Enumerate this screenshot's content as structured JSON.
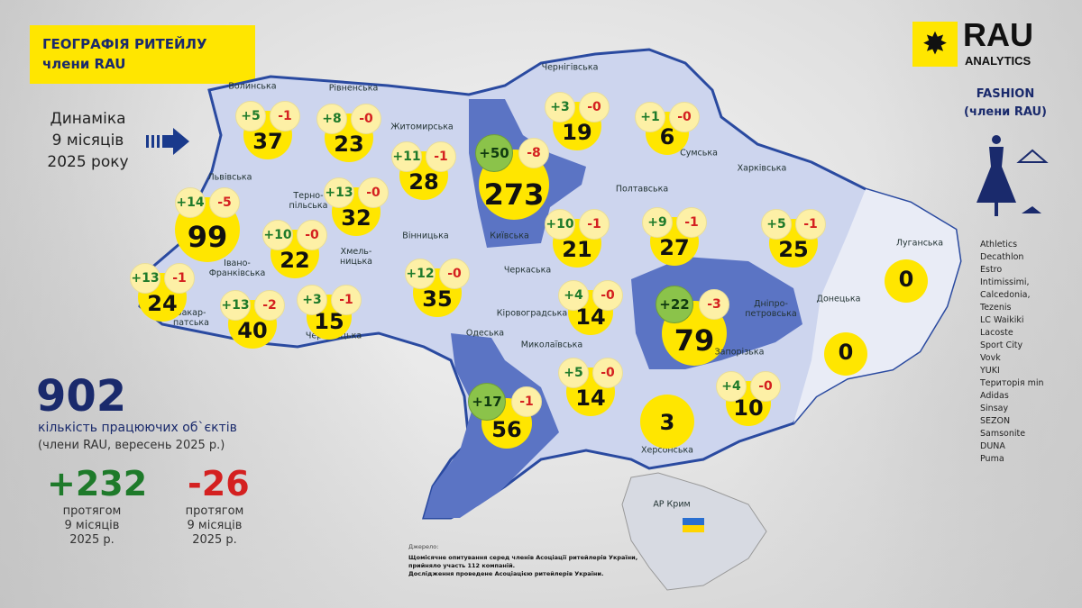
{
  "header": {
    "title_line1": "ГЕОГРАФІЯ РИТЕЙЛУ",
    "title_line2": "члени RAU"
  },
  "dynamics": {
    "line1": "Динаміка",
    "line2": "9 місяців",
    "line3": "2025 року"
  },
  "summary": {
    "total": "902",
    "total_label1": "кількість працюючих об`єктів",
    "total_label2": "(члени RAU, вересень 2025 р.)",
    "opened": "+232",
    "closed": "-26",
    "period_label1": "протягом",
    "period_label2": "9 місяців",
    "period_label3": "2025 р.",
    "opened_color": "#1e7a2a",
    "closed_color": "#d42020"
  },
  "logo": {
    "name": "RAU",
    "sub": "ANALYTICS"
  },
  "segment": {
    "line1": "FASHION",
    "line2": "(члени RAU)"
  },
  "brands": [
    "Athletics",
    "Decathlon",
    "Estro",
    "Intimissimi, Calcedonia, Tezenis",
    "LC Waikiki",
    "Lacoste",
    "Sport City",
    "Vovk",
    "YUKI",
    "Територія min",
    "Adidas",
    "Sinsay",
    "SEZON",
    "Samsonite",
    "DUNA",
    "Puma"
  ],
  "colors": {
    "accent": "#ffe600",
    "map_region": "#cdd5ee",
    "map_highlight": "#5b74c4",
    "brand_blue": "#1a2a6c",
    "increase_badge": "#8bc34a"
  },
  "regions": [
    {
      "name": "Волинська",
      "total": 37,
      "plus": "+5",
      "minus": "-1"
    },
    {
      "name": "Рівненська",
      "total": 23,
      "plus": "+8",
      "minus": "-0"
    },
    {
      "name": "Житомирська",
      "total": 28,
      "plus": "+11",
      "minus": "-1"
    },
    {
      "name": "Київська",
      "total": 273,
      "plus": "+50",
      "minus": "-8",
      "highlight": true
    },
    {
      "name": "Чернігівська",
      "total": 19,
      "plus": "+3",
      "minus": "-0"
    },
    {
      "name": "Сумська",
      "total": 6,
      "plus": "+1",
      "minus": "-0"
    },
    {
      "name": "Львівська",
      "total": 99,
      "plus": "+14",
      "minus": "-5"
    },
    {
      "name": "Терно-\nпільська",
      "total": 22,
      "plus": "+10",
      "minus": "-0"
    },
    {
      "name": "Хмель-\nницька",
      "total": 32,
      "plus": "+13",
      "minus": "-0"
    },
    {
      "name": "Вінницька",
      "total": 35,
      "plus": "+12",
      "minus": "-0"
    },
    {
      "name": "Черкаська",
      "total": 21,
      "plus": "+10",
      "minus": "-1"
    },
    {
      "name": "Полтавська",
      "total": 27,
      "plus": "+9",
      "minus": "-1"
    },
    {
      "name": "Харківська",
      "total": 25,
      "plus": "+5",
      "minus": "-1"
    },
    {
      "name": "Луганська",
      "total": 0
    },
    {
      "name": "Донецька",
      "total": 0
    },
    {
      "name": "Закар-\nпатська",
      "total": 24,
      "plus": "+13",
      "minus": "-1"
    },
    {
      "name": "Івано-\nФранківська",
      "total": 40,
      "plus": "+13",
      "minus": "-2"
    },
    {
      "name": "Чернівецька",
      "total": 15,
      "plus": "+3",
      "minus": "-1"
    },
    {
      "name": "Кіровоградська",
      "total": 14,
      "plus": "+4",
      "minus": "-0"
    },
    {
      "name": "Дніпро-\nпетровська",
      "total": 79,
      "plus": "+22",
      "minus": "-3",
      "highlight": true
    },
    {
      "name": "Одеська",
      "total": 56,
      "plus": "+17",
      "minus": "-1",
      "highlight": true
    },
    {
      "name": "Миколаївська",
      "total": 14,
      "plus": "+5",
      "minus": "-0"
    },
    {
      "name": "Херсонська",
      "total": 3
    },
    {
      "name": "Запорізька",
      "total": 10,
      "plus": "+4",
      "minus": "-0"
    }
  ],
  "crimea": {
    "name": "АР Крим"
  },
  "source": {
    "heading": "Джерело:",
    "line1": "Щомісячне опитування серед членів Асоціації ритейлерів України,",
    "line2": "прийняло участь 112 компаній.",
    "line3": "Дослідження проведене Асоціацією ритейлерів України."
  }
}
